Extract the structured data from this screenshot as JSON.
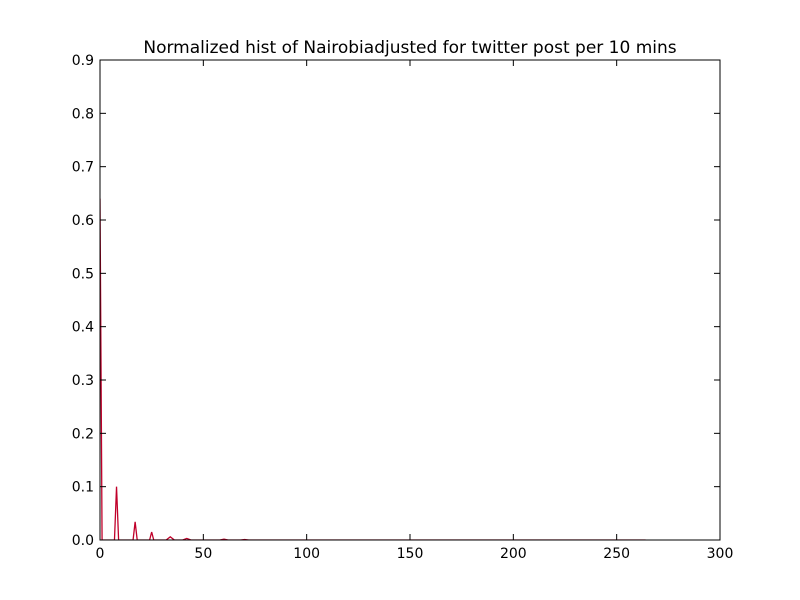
{
  "chart_data": {
    "type": "line",
    "title": "Normalized hist of Nairobiadjusted for twitter post per 10 mins",
    "xlabel": "",
    "ylabel": "",
    "xlim": [
      0,
      300
    ],
    "ylim": [
      0,
      0.9
    ],
    "x_ticks": [
      "0",
      "50",
      "100",
      "150",
      "200",
      "250",
      "300"
    ],
    "y_ticks": [
      "0.0",
      "0.1",
      "0.2",
      "0.3",
      "0.4",
      "0.5",
      "0.6",
      "0.7",
      "0.8",
      "0.9"
    ],
    "grid": false,
    "legend": "none",
    "series": [
      {
        "color": "#c0002a",
        "points": [
          [
            0,
            0.64
          ],
          [
            1,
            0.0
          ],
          [
            7,
            0.0
          ],
          [
            8,
            0.1
          ],
          [
            9,
            0.0
          ],
          [
            16,
            0.0
          ],
          [
            17,
            0.034
          ],
          [
            18,
            0.0
          ],
          [
            24,
            0.0
          ],
          [
            25,
            0.015
          ],
          [
            26,
            0.0
          ],
          [
            32,
            0.0
          ],
          [
            34,
            0.006
          ],
          [
            36,
            0.0
          ],
          [
            40,
            0.0
          ],
          [
            42,
            0.003
          ],
          [
            44,
            0.0
          ],
          [
            58,
            0.0
          ],
          [
            60,
            0.0015
          ],
          [
            62,
            0.0
          ],
          [
            68,
            0.0
          ],
          [
            70,
            0.001
          ],
          [
            72,
            0.0
          ],
          [
            264,
            0.0
          ]
        ]
      }
    ]
  }
}
